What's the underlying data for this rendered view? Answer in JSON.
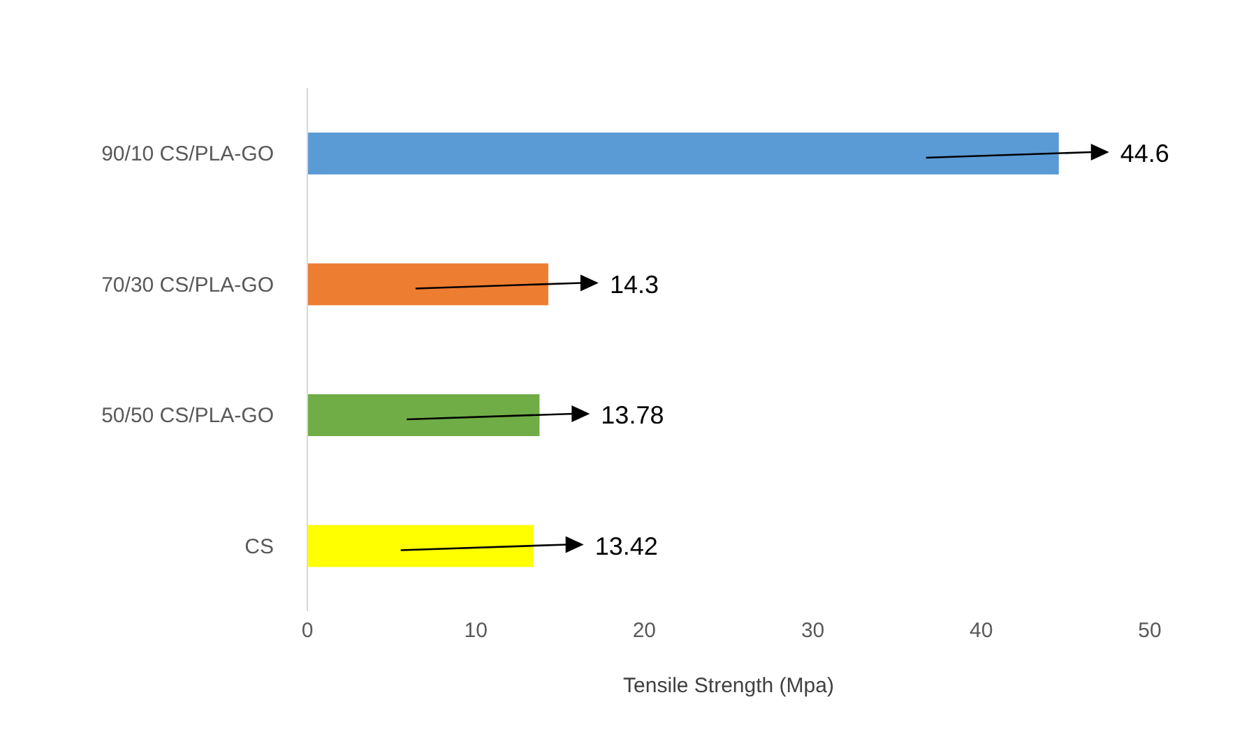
{
  "chart_data": {
    "type": "bar",
    "orientation": "horizontal",
    "xlabel": "Tensile Strength (Mpa)",
    "categories": [
      "90/10 CS/PLA-GO",
      "70/30 CS/PLA-GO",
      "50/50 CS/PLA-GO",
      "CS"
    ],
    "values": [
      44.6,
      14.3,
      13.78,
      13.42
    ],
    "colors": [
      "#5b9bd5",
      "#ed7d31",
      "#70ad47",
      "#ffff00"
    ],
    "xlim": [
      0,
      50
    ],
    "xticks": [
      0,
      10,
      20,
      30,
      40,
      50
    ],
    "data_labels": true
  }
}
